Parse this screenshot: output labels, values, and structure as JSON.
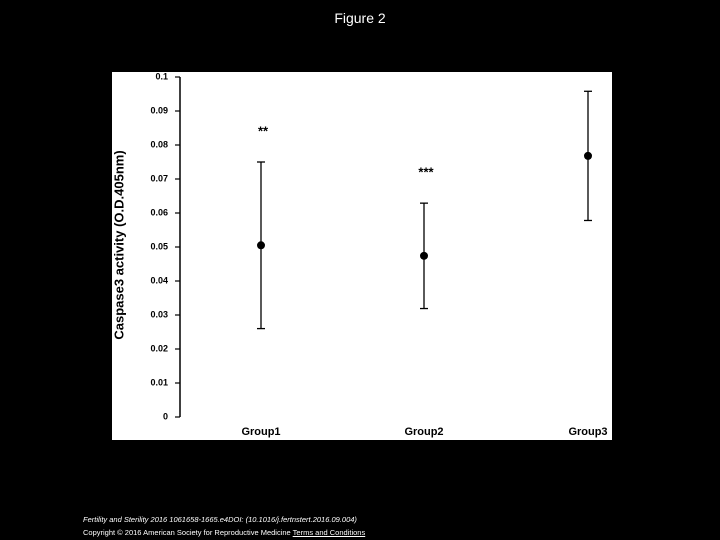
{
  "title": "Figure 2",
  "chart_data": {
    "type": "errorbar",
    "y_label": "Caspase3 activity (O.D.405nm)",
    "categories": [
      "Group1",
      "Group2",
      "Group3"
    ],
    "values": [
      0.0505,
      0.0474,
      0.0768
    ],
    "errors": [
      0.0245,
      0.0155,
      0.019
    ],
    "annotations": [
      "**",
      "***",
      null
    ],
    "color": "#000000",
    "ylim": [
      0,
      0.1
    ],
    "yticks": [
      0,
      0.01,
      0.02,
      0.03,
      0.04,
      0.05,
      0.06,
      0.07,
      0.08,
      0.09,
      0.1
    ]
  },
  "footer": {
    "citation": "Fertility and Sterility 2016 1061658-1665.e4DOI: (10.1016/j.fertnstert.2016.09.004)",
    "copyright": "Copyright © 2016 American Society for Reproductive Medicine",
    "link": "Terms and Conditions"
  }
}
